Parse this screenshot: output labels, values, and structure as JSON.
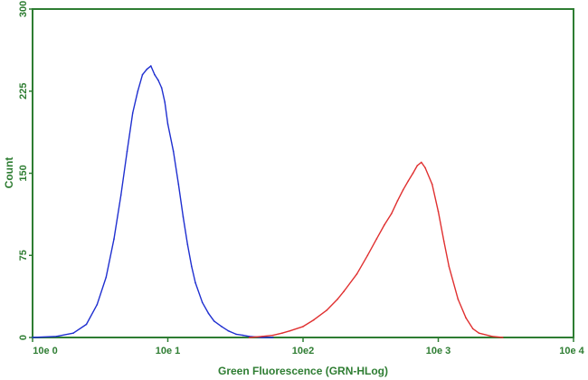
{
  "chart_data": {
    "type": "line",
    "title": "",
    "xlabel": "Green Fluorescence (GRN-HLog)",
    "ylabel": "Count",
    "x_scale": "log",
    "xlim": [
      1,
      10000
    ],
    "ylim": [
      0,
      300
    ],
    "x_ticks": [
      {
        "value": 1,
        "label": "10e 0"
      },
      {
        "value": 10,
        "label": "10e 1"
      },
      {
        "value": 100,
        "label": "10e2"
      },
      {
        "value": 1000,
        "label": "10e 3"
      },
      {
        "value": 10000,
        "label": "10e 4"
      }
    ],
    "y_ticks": [
      {
        "value": 0,
        "label": "0"
      },
      {
        "value": 75,
        "label": "75"
      },
      {
        "value": 150,
        "label": "150"
      },
      {
        "value": 225,
        "label": "225"
      },
      {
        "value": 300,
        "label": "300"
      }
    ],
    "grid": false,
    "legend": "none",
    "series": [
      {
        "color": "#1f2fd0",
        "x": [
          1.0,
          1.5,
          2.0,
          2.5,
          3.0,
          3.5,
          4.0,
          4.5,
          5.0,
          5.5,
          6.0,
          6.5,
          7.0,
          7.5,
          8.0,
          8.5,
          9.0,
          9.5,
          10.0,
          11.0,
          12.0,
          13.0,
          14.0,
          15.0,
          16.0,
          18.0,
          20.0,
          22.0,
          25.0,
          28.0,
          32.0,
          36.0,
          40.0,
          50.0,
          60.0
        ],
        "y": [
          0,
          1,
          4,
          12,
          30,
          55,
          90,
          130,
          170,
          205,
          225,
          240,
          245,
          248,
          240,
          235,
          228,
          215,
          195,
          170,
          140,
          110,
          85,
          65,
          50,
          32,
          22,
          15,
          10,
          6,
          3,
          2,
          1,
          0,
          0
        ]
      },
      {
        "color": "#e03030",
        "x": [
          40,
          50,
          60,
          70,
          80,
          100,
          120,
          150,
          180,
          200,
          250,
          300,
          350,
          400,
          450,
          500,
          550,
          600,
          650,
          700,
          750,
          800,
          900,
          1000,
          1100,
          1200,
          1400,
          1600,
          1800,
          2000,
          2500,
          3000
        ],
        "y": [
          0,
          1,
          2,
          4,
          6,
          10,
          16,
          25,
          35,
          42,
          58,
          75,
          90,
          103,
          113,
          125,
          135,
          143,
          150,
          157,
          160,
          155,
          140,
          115,
          88,
          65,
          35,
          18,
          8,
          4,
          1,
          0
        ]
      }
    ]
  }
}
